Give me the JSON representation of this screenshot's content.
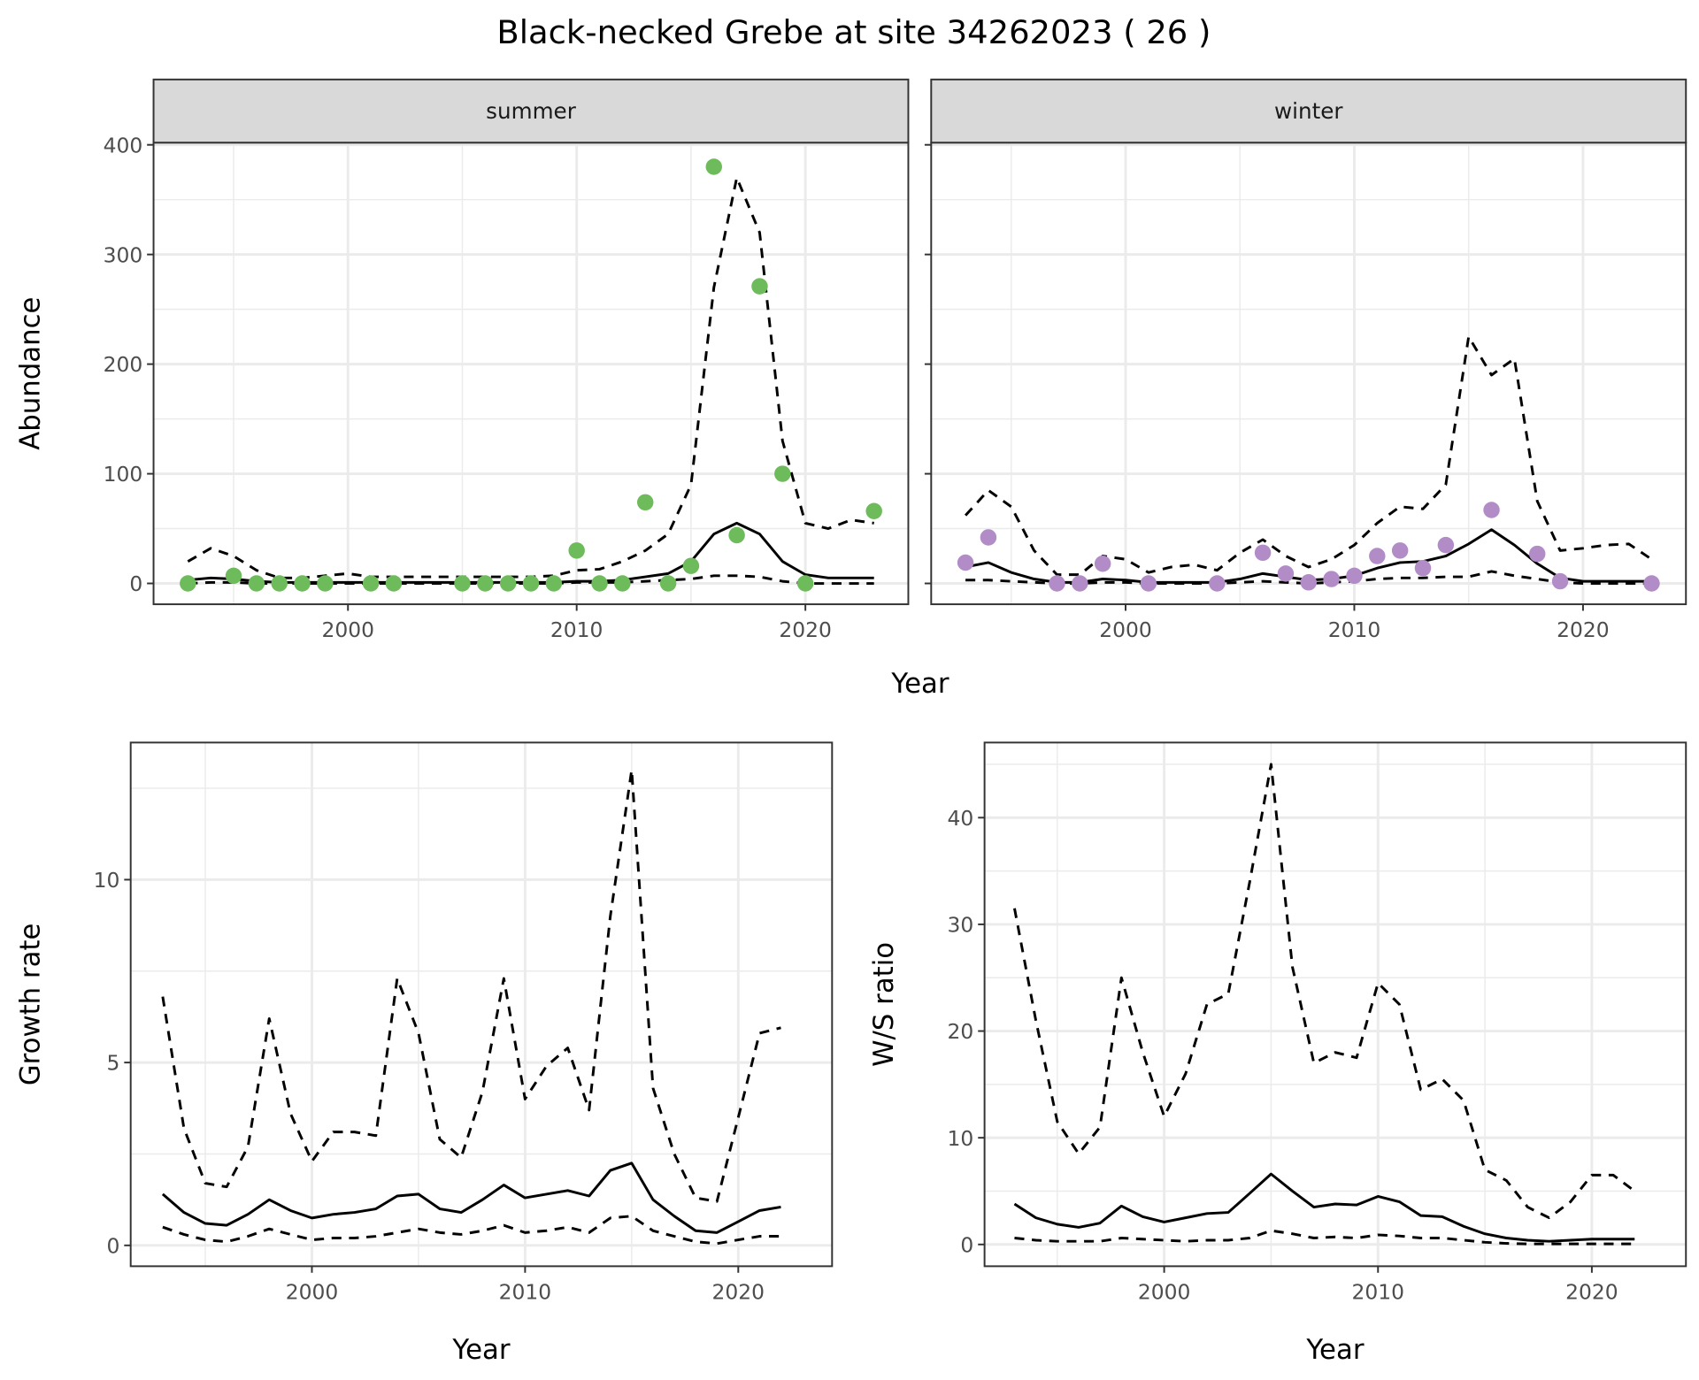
{
  "chart_data": {
    "title": "Black-necked Grebe at site 34262023 ( 26 )",
    "panels": [
      {
        "id": "summer",
        "type": "line+scatter",
        "strip": "summer",
        "xlabel": "",
        "ylabel": "Abundance",
        "shared_xlabel": "Year",
        "xlim": [
          1991.5,
          2024.5
        ],
        "ylim": [
          -19,
          402
        ],
        "xticks": [
          2000,
          2010,
          2020
        ],
        "xminor": [
          1995,
          2005,
          2015
        ],
        "yticks": [
          0,
          100,
          200,
          300,
          400
        ],
        "yminor": [
          50,
          150,
          250,
          350
        ],
        "show_ytick_labels": true,
        "point_color": "#6DBB5A",
        "points": {
          "x": [
            1993,
            1995,
            1996,
            1997,
            1998,
            1999,
            2001,
            2002,
            2005,
            2006,
            2007,
            2008,
            2009,
            2010,
            2011,
            2012,
            2013,
            2014,
            2015,
            2016,
            2017,
            2018,
            2019,
            2020,
            2023
          ],
          "y": [
            0,
            7,
            0,
            0,
            0,
            0,
            0,
            0,
            0,
            0,
            0,
            0,
            0,
            30,
            0,
            0,
            74,
            0,
            16,
            380,
            44,
            271,
            100,
            0,
            66
          ]
        },
        "x": [
          1993,
          1994,
          1995,
          1996,
          1997,
          1998,
          1999,
          2000,
          2001,
          2002,
          2003,
          2004,
          2005,
          2006,
          2007,
          2008,
          2009,
          2010,
          2011,
          2012,
          2013,
          2014,
          2015,
          2016,
          2017,
          2018,
          2019,
          2020,
          2021,
          2022,
          2023
        ],
        "mean": [
          3,
          5,
          4,
          2,
          1,
          1,
          1,
          1,
          1,
          1,
          1,
          1,
          1,
          1,
          1,
          1,
          1,
          2,
          2,
          3,
          6,
          9,
          20,
          45,
          55,
          45,
          20,
          8,
          5,
          5,
          5
        ],
        "upper": [
          20,
          32,
          25,
          12,
          5,
          5,
          7,
          9,
          6,
          6,
          6,
          6,
          6,
          6,
          6,
          6,
          7,
          12,
          13,
          20,
          30,
          45,
          90,
          270,
          370,
          320,
          130,
          55,
          50,
          58,
          55
        ],
        "lower": [
          0,
          1,
          1,
          0,
          0,
          0,
          0,
          0,
          0,
          0,
          0,
          0,
          0,
          0,
          0,
          0,
          0,
          1,
          1,
          1,
          2,
          3,
          4,
          7,
          7,
          6,
          2,
          0,
          0,
          0,
          0
        ]
      },
      {
        "id": "winter",
        "type": "line+scatter",
        "strip": "winter",
        "xlabel": "",
        "ylabel": "",
        "xlim": [
          1991.5,
          2024.5
        ],
        "ylim": [
          -19,
          402
        ],
        "xticks": [
          2000,
          2010,
          2020
        ],
        "xminor": [
          1995,
          2005,
          2015
        ],
        "yticks": [
          0,
          100,
          200,
          300,
          400
        ],
        "yminor": [
          50,
          150,
          250,
          350
        ],
        "show_ytick_labels": false,
        "point_color": "#B28CC7",
        "points": {
          "x": [
            1993,
            1994,
            1997,
            1998,
            1999,
            2001,
            2004,
            2006,
            2007,
            2008,
            2009,
            2010,
            2011,
            2012,
            2013,
            2014,
            2016,
            2018,
            2019,
            2023
          ],
          "y": [
            19,
            42,
            0,
            0,
            18,
            0,
            0,
            28,
            9,
            1,
            4,
            7,
            25,
            30,
            14,
            35,
            67,
            27,
            2,
            0
          ]
        },
        "x": [
          1993,
          1994,
          1995,
          1996,
          1997,
          1998,
          1999,
          2000,
          2001,
          2002,
          2003,
          2004,
          2005,
          2006,
          2007,
          2008,
          2009,
          2010,
          2011,
          2012,
          2013,
          2014,
          2015,
          2016,
          2017,
          2018,
          2019,
          2020,
          2021,
          2022,
          2023
        ],
        "mean": [
          15,
          19,
          10,
          4,
          1,
          1,
          4,
          3,
          1,
          1,
          1,
          1,
          4,
          9,
          6,
          3,
          4,
          7,
          14,
          19,
          20,
          25,
          36,
          49,
          35,
          18,
          5,
          2,
          2,
          2,
          2
        ],
        "upper": [
          62,
          85,
          70,
          30,
          8,
          8,
          25,
          22,
          10,
          15,
          17,
          12,
          28,
          40,
          25,
          15,
          22,
          35,
          55,
          70,
          68,
          90,
          225,
          190,
          205,
          75,
          30,
          32,
          35,
          36,
          22
        ],
        "lower": [
          3,
          3,
          2,
          1,
          0,
          0,
          1,
          1,
          0,
          0,
          0,
          0,
          1,
          2,
          1,
          0,
          1,
          2,
          4,
          5,
          5,
          6,
          6,
          11,
          7,
          4,
          1,
          0,
          0,
          0,
          0
        ]
      },
      {
        "id": "growth",
        "type": "line",
        "xlabel": "Year",
        "ylabel": "Growth rate",
        "xlim": [
          1991.5,
          2024.4
        ],
        "ylim": [
          -0.57,
          13.75
        ],
        "xticks": [
          2000,
          2010,
          2020
        ],
        "xminor": [
          1995,
          2005,
          2015
        ],
        "yticks": [
          0,
          5,
          10
        ],
        "yminor": [
          2.5,
          7.5,
          12.5
        ],
        "show_ytick_labels": true,
        "x": [
          1993,
          1994,
          1995,
          1996,
          1997,
          1998,
          1999,
          2000,
          2001,
          2002,
          2003,
          2004,
          2005,
          2006,
          2007,
          2008,
          2009,
          2010,
          2011,
          2012,
          2013,
          2014,
          2015,
          2016,
          2017,
          2018,
          2019,
          2020,
          2021,
          2022
        ],
        "mean": [
          1.4,
          0.9,
          0.6,
          0.55,
          0.85,
          1.25,
          0.95,
          0.75,
          0.85,
          0.9,
          1.0,
          1.35,
          1.4,
          1.0,
          0.9,
          1.25,
          1.65,
          1.3,
          1.4,
          1.5,
          1.35,
          2.05,
          2.25,
          1.25,
          0.8,
          0.4,
          0.35,
          0.65,
          0.95,
          1.05
        ],
        "upper": [
          6.8,
          3.2,
          1.7,
          1.6,
          2.7,
          6.2,
          3.6,
          2.3,
          3.1,
          3.1,
          3.0,
          7.3,
          5.8,
          2.9,
          2.4,
          4.2,
          7.3,
          4.0,
          4.9,
          5.4,
          3.7,
          9.0,
          13.0,
          4.3,
          2.5,
          1.3,
          1.2,
          3.5,
          5.8,
          5.95
        ],
        "lower": [
          0.5,
          0.3,
          0.15,
          0.1,
          0.25,
          0.45,
          0.3,
          0.15,
          0.2,
          0.2,
          0.25,
          0.35,
          0.45,
          0.35,
          0.3,
          0.4,
          0.55,
          0.35,
          0.4,
          0.5,
          0.35,
          0.75,
          0.8,
          0.4,
          0.25,
          0.1,
          0.05,
          0.15,
          0.25,
          0.25
        ]
      },
      {
        "id": "ws_ratio",
        "type": "line",
        "xlabel": "Year",
        "ylabel": "W/S ratio",
        "xlim": [
          1991.6,
          2024.4
        ],
        "ylim": [
          -2.04,
          47.04
        ],
        "xticks": [
          2000,
          2010,
          2020
        ],
        "xminor": [
          1995,
          2005,
          2015
        ],
        "yticks": [
          0,
          10,
          20,
          30,
          40
        ],
        "yminor": [
          5,
          15,
          25,
          35,
          45
        ],
        "show_ytick_labels": true,
        "x": [
          1993,
          1994,
          1995,
          1996,
          1997,
          1998,
          1999,
          2000,
          2001,
          2002,
          2003,
          2004,
          2005,
          2006,
          2007,
          2008,
          2009,
          2010,
          2011,
          2012,
          2013,
          2014,
          2015,
          2016,
          2017,
          2018,
          2019,
          2020,
          2021,
          2022
        ],
        "mean": [
          3.8,
          2.5,
          1.9,
          1.6,
          2.0,
          3.6,
          2.6,
          2.1,
          2.5,
          2.9,
          3.0,
          4.8,
          6.6,
          5.0,
          3.5,
          3.8,
          3.7,
          4.5,
          4.0,
          2.7,
          2.6,
          1.7,
          1.0,
          0.6,
          0.4,
          0.3,
          0.4,
          0.5,
          0.5,
          0.5
        ],
        "upper": [
          31.5,
          21,
          11.5,
          8.5,
          11,
          25,
          18,
          12,
          16,
          22.5,
          23.5,
          34,
          45,
          26,
          17,
          18,
          17.5,
          24.5,
          22.5,
          14.5,
          15.5,
          13.5,
          7,
          6,
          3.5,
          2.5,
          4,
          6.5,
          6.5,
          5
        ],
        "lower": [
          0.6,
          0.4,
          0.3,
          0.3,
          0.3,
          0.6,
          0.5,
          0.4,
          0.3,
          0.4,
          0.4,
          0.6,
          1.3,
          1.0,
          0.6,
          0.7,
          0.6,
          0.9,
          0.8,
          0.6,
          0.6,
          0.4,
          0.2,
          0.1,
          0.05,
          0.05,
          0.05,
          0.05,
          0.05,
          0.05
        ]
      }
    ]
  }
}
